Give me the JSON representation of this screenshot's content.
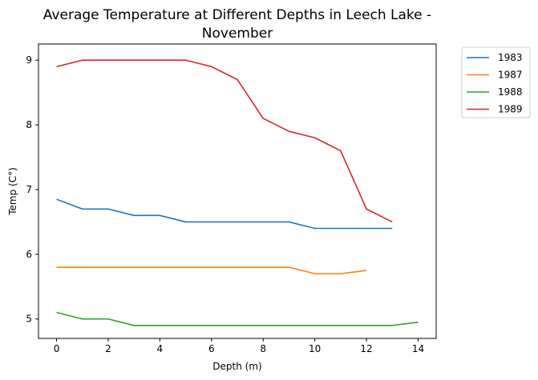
{
  "chart_data": {
    "type": "line",
    "title": "Average Temperature at Different Depths in Leech Lake - November",
    "title_lines": [
      "Average Temperature at Different Depths in Leech Lake -",
      "November"
    ],
    "xlabel": "Depth (m)",
    "ylabel": "Temp (C°)",
    "xlim": [
      -0.7,
      14.7
    ],
    "ylim": [
      4.7,
      9.25
    ],
    "xticks": [
      0,
      2,
      4,
      6,
      8,
      10,
      12,
      14
    ],
    "yticks": [
      5,
      6,
      7,
      8,
      9
    ],
    "grid": false,
    "legend_position": "outside-top-right",
    "series": [
      {
        "name": "1983",
        "color": "#1f77b4",
        "x": [
          0,
          1,
          2,
          3,
          4,
          5,
          6,
          7,
          8,
          9,
          10,
          11,
          12,
          13
        ],
        "y": [
          6.85,
          6.7,
          6.7,
          6.6,
          6.6,
          6.5,
          6.5,
          6.5,
          6.5,
          6.5,
          6.4,
          6.4,
          6.4,
          6.4
        ]
      },
      {
        "name": "1987",
        "color": "#ff7f0e",
        "x": [
          0,
          1,
          2,
          3,
          4,
          5,
          6,
          7,
          8,
          9,
          10,
          11,
          12
        ],
        "y": [
          5.8,
          5.8,
          5.8,
          5.8,
          5.8,
          5.8,
          5.8,
          5.8,
          5.8,
          5.8,
          5.7,
          5.7,
          5.75
        ]
      },
      {
        "name": "1988",
        "color": "#2ca02c",
        "x": [
          0,
          1,
          2,
          3,
          4,
          5,
          6,
          7,
          8,
          9,
          10,
          11,
          12,
          13,
          14
        ],
        "y": [
          5.1,
          5.0,
          5.0,
          4.9,
          4.9,
          4.9,
          4.9,
          4.9,
          4.9,
          4.9,
          4.9,
          4.9,
          4.9,
          4.9,
          4.95
        ]
      },
      {
        "name": "1989",
        "color": "#d62728",
        "x": [
          0,
          1,
          2,
          3,
          4,
          5,
          6,
          7,
          8,
          9,
          10,
          11,
          12,
          13
        ],
        "y": [
          8.9,
          9.0,
          9.0,
          9.0,
          9.0,
          9.0,
          8.9,
          8.7,
          8.1,
          7.9,
          7.8,
          7.6,
          6.7,
          6.5
        ]
      }
    ]
  }
}
